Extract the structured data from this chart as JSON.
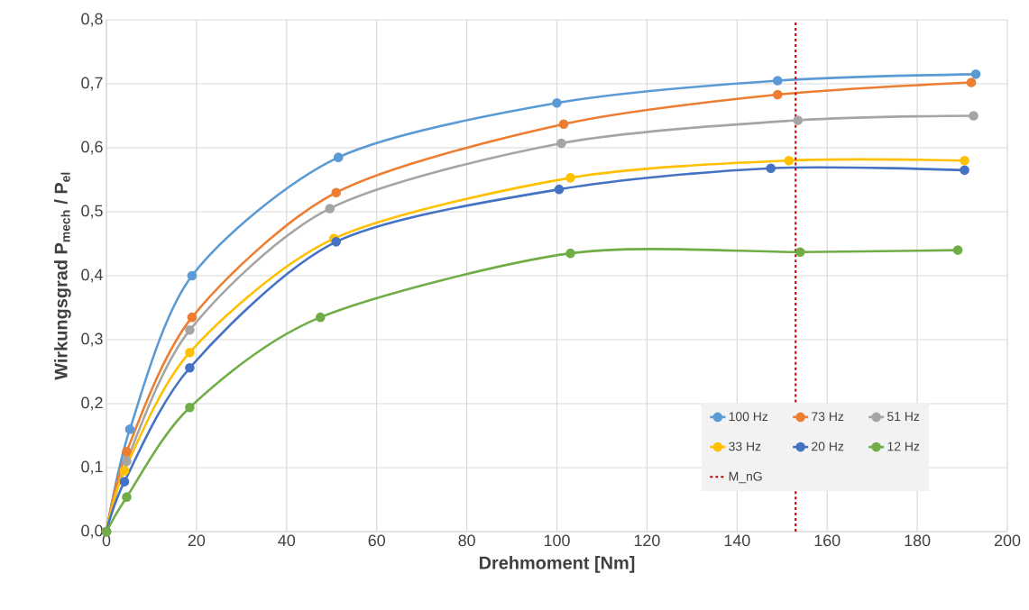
{
  "chart_data": {
    "type": "line",
    "xlabel": "Drehmoment [Nm]",
    "ylabel": "Wirkungsgrad P$_{mech}$ / P$_{el}$",
    "xlim": [
      0,
      200
    ],
    "ylim": [
      0,
      0.8
    ],
    "xticks": [
      0,
      20,
      40,
      60,
      80,
      100,
      120,
      140,
      160,
      180,
      200
    ],
    "yticks": [
      {
        "value": 0,
        "label": "0,0"
      },
      {
        "value": 0.1,
        "label": "0,1"
      },
      {
        "value": 0.2,
        "label": "0,2"
      },
      {
        "value": 0.3,
        "label": "0,3"
      },
      {
        "value": 0.4,
        "label": "0,4"
      },
      {
        "value": 0.5,
        "label": "0,5"
      },
      {
        "value": 0.6,
        "label": "0,6"
      },
      {
        "value": 0.7,
        "label": "0,7"
      },
      {
        "value": 0.8,
        "label": "0,8"
      }
    ],
    "grid": true,
    "legend": "bottom right",
    "marker": "circle",
    "line_style": "solid",
    "series": [
      {
        "name": "100 Hz",
        "color": "#5b9bd5",
        "x": [
          0,
          5.2,
          19,
          51.5,
          100,
          149,
          193
        ],
        "values": [
          0,
          0.16,
          0.4,
          0.585,
          0.67,
          0.705,
          0.715
        ]
      },
      {
        "name": "73 Hz",
        "color": "#ed7d31",
        "x": [
          0,
          4.5,
          19,
          51,
          101.5,
          149,
          192
        ],
        "values": [
          0,
          0.125,
          0.335,
          0.53,
          0.637,
          0.683,
          0.702
        ]
      },
      {
        "name": "51 Hz",
        "color": "#a5a5a5",
        "x": [
          0,
          4.5,
          18.5,
          49.6,
          101,
          153.5,
          192.5
        ],
        "values": [
          0,
          0.11,
          0.315,
          0.505,
          0.607,
          0.643,
          0.65
        ]
      },
      {
        "name": "33 Hz",
        "color": "#ffc000",
        "x": [
          0,
          4,
          18.5,
          50.5,
          103,
          151.5,
          190.5
        ],
        "values": [
          0,
          0.095,
          0.28,
          0.458,
          0.553,
          0.58,
          0.58
        ]
      },
      {
        "name": "20 Hz",
        "color": "#4472c4",
        "x": [
          0,
          4,
          18.5,
          51,
          100.5,
          147.5,
          190.5
        ],
        "values": [
          0,
          0.078,
          0.256,
          0.453,
          0.535,
          0.568,
          0.565
        ]
      },
      {
        "name": "12 Hz",
        "color": "#70ad47",
        "x": [
          0,
          4.5,
          18.5,
          47.5,
          103,
          154,
          189
        ],
        "values": [
          0,
          0.054,
          0.194,
          0.335,
          0.435,
          0.437,
          0.44
        ]
      }
    ],
    "ref_lines": [
      {
        "axis": "x",
        "value": 153,
        "label": "M_nG",
        "color": "#c00000",
        "line_style": "dashed"
      }
    ]
  }
}
